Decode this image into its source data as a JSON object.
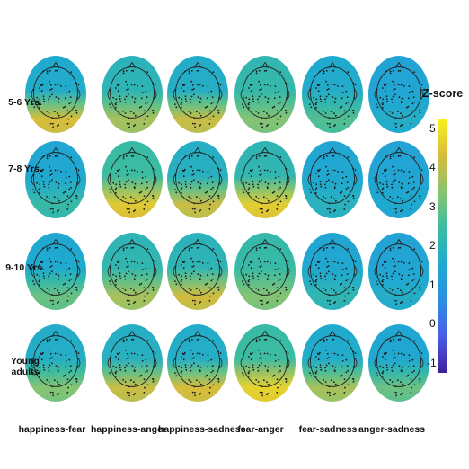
{
  "rows": [
    "5-6 Yrs.",
    "7-8 Yrs.",
    "9-10 Yrs.",
    "Young\nadults"
  ],
  "columns": [
    "happiness-fear",
    "happiness-anger",
    "happiness-sadness",
    "fear-anger",
    "fear-sadness",
    "anger-sadness"
  ],
  "colorbar": {
    "title": "Z-score",
    "ticks": [
      "5",
      "4",
      "3",
      "2",
      "1",
      "0",
      "-1"
    ],
    "range": [
      -1,
      5.5
    ],
    "colormap": [
      "#3e1f9c",
      "#4a5ce8",
      "#2c8fe0",
      "#1faad0",
      "#3cbca0",
      "#8ac470",
      "#d8bb3a",
      "#f8f21e"
    ]
  },
  "maps": [
    [
      {
        "front": 1.8,
        "back": 4.6
      },
      {
        "front": 2.2,
        "back": 4.0
      },
      {
        "front": 1.9,
        "back": 4.4
      },
      {
        "front": 2.4,
        "back": 3.6
      },
      {
        "front": 1.8,
        "back": 3.0
      },
      {
        "front": 1.5,
        "back": 2.0
      }
    ],
    [
      {
        "front": 1.6,
        "back": 2.6
      },
      {
        "front": 2.6,
        "back": 4.8
      },
      {
        "front": 2.0,
        "back": 4.4
      },
      {
        "front": 2.3,
        "back": 4.9
      },
      {
        "front": 1.6,
        "back": 2.2
      },
      {
        "front": 1.5,
        "back": 1.8
      }
    ],
    [
      {
        "front": 1.7,
        "back": 3.3
      },
      {
        "front": 2.3,
        "back": 4.0
      },
      {
        "front": 2.2,
        "back": 4.5
      },
      {
        "front": 2.5,
        "back": 3.6
      },
      {
        "front": 1.6,
        "back": 2.4
      },
      {
        "front": 1.5,
        "back": 2.0
      }
    ],
    [
      {
        "front": 1.9,
        "back": 3.6
      },
      {
        "front": 2.0,
        "back": 4.4
      },
      {
        "front": 1.9,
        "back": 4.6
      },
      {
        "front": 2.6,
        "back": 5.0
      },
      {
        "front": 1.8,
        "back": 4.0
      },
      {
        "front": 1.6,
        "back": 3.3
      }
    ]
  ]
}
